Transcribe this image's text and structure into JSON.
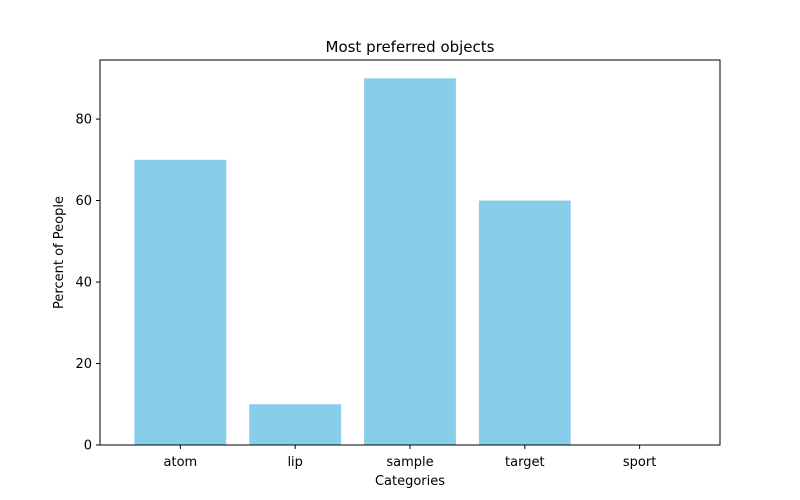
{
  "chart_data": {
    "type": "bar",
    "title": "Most preferred objects",
    "xlabel": "Categories",
    "ylabel": "Percent of People",
    "categories": [
      "atom",
      "lip",
      "sample",
      "target",
      "sport"
    ],
    "values": [
      70,
      10,
      90,
      60,
      0
    ],
    "ylim": [
      0,
      94.5
    ],
    "yticks": [
      "0",
      "20",
      "40",
      "60",
      "80"
    ],
    "bar_color": "#87ceeb",
    "grid": false,
    "legend": "none"
  }
}
